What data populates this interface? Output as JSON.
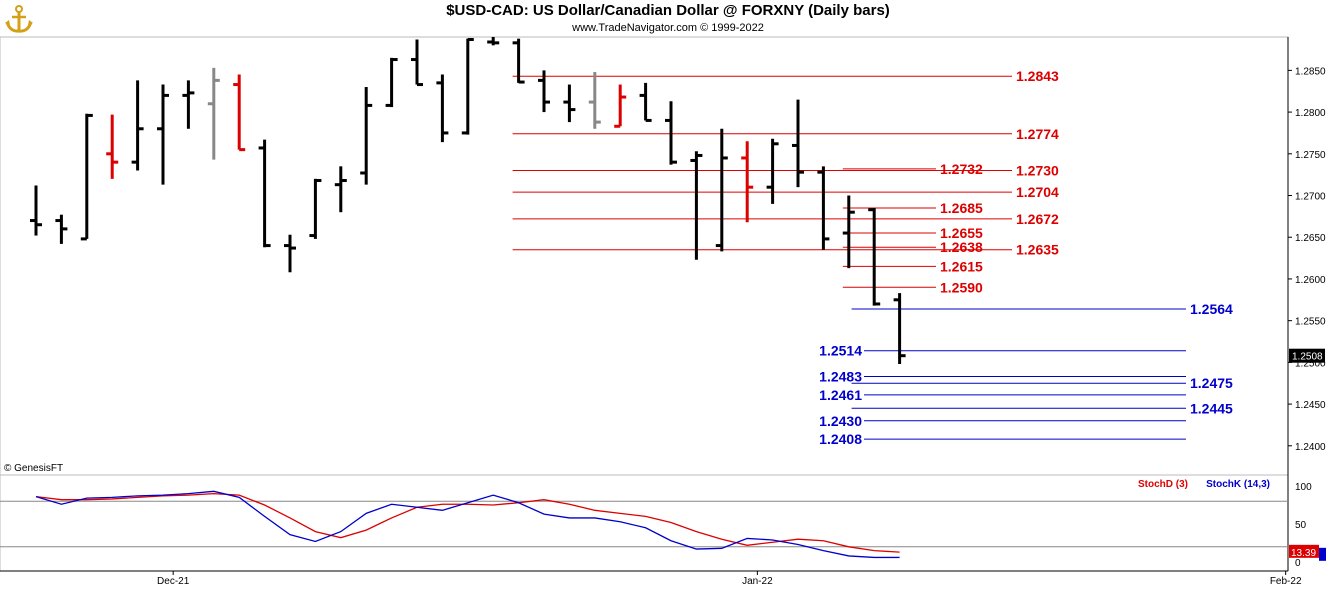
{
  "header": {
    "title": "$USD-CAD:  US Dollar/Canadian Dollar @ FORXNY  (Daily bars)",
    "subtitle": "www.TradeNavigator.com © 1999-2022",
    "credit": "© GenesisFT"
  },
  "colors": {
    "resistance": "#dd0000",
    "support": "#0000cc",
    "bar_default": "#000000",
    "bar_red": "#dd0000",
    "bar_gray": "#888888",
    "stoch_d": "#dd0000",
    "stoch_k": "#0000cc"
  },
  "chart_data": [
    {
      "type": "ohlc",
      "price_axis": {
        "ylim": [
          1.2365,
          1.289
        ],
        "ticks": [
          "1.2850",
          "1.2800",
          "1.2750",
          "1.2700",
          "1.2650",
          "1.2600",
          "1.2550",
          "1.2500",
          "1.2450",
          "1.2400"
        ],
        "last_price": "1.2508"
      },
      "x_labels": [
        {
          "label": "Dec-21",
          "bar_index": 5.4
        },
        {
          "label": "Jan-22",
          "bar_index": 28.4
        },
        {
          "label": "Feb-22",
          "bar_index": 49.2
        }
      ],
      "bars": [
        {
          "o": 1.267,
          "h": 1.2712,
          "l": 1.2652,
          "c": 1.2665,
          "color": "black"
        },
        {
          "o": 1.267,
          "h": 1.2677,
          "l": 1.2642,
          "c": 1.266,
          "color": "black"
        },
        {
          "o": 1.2648,
          "h": 1.2798,
          "l": 1.2648,
          "c": 1.2796,
          "color": "black"
        },
        {
          "o": 1.275,
          "h": 1.2797,
          "l": 1.272,
          "c": 1.274,
          "color": "red"
        },
        {
          "o": 1.274,
          "h": 1.2838,
          "l": 1.273,
          "c": 1.278,
          "color": "black"
        },
        {
          "o": 1.278,
          "h": 1.2833,
          "l": 1.2713,
          "c": 1.282,
          "color": "black"
        },
        {
          "o": 1.282,
          "h": 1.2838,
          "l": 1.278,
          "c": 1.2823,
          "color": "black"
        },
        {
          "o": 1.281,
          "h": 1.2853,
          "l": 1.2743,
          "c": 1.2838,
          "color": "gray"
        },
        {
          "o": 1.2833,
          "h": 1.2845,
          "l": 1.2755,
          "c": 1.2755,
          "color": "red"
        },
        {
          "o": 1.2757,
          "h": 1.2767,
          "l": 1.2638,
          "c": 1.264,
          "color": "black"
        },
        {
          "o": 1.264,
          "h": 1.2653,
          "l": 1.2608,
          "c": 1.2637,
          "color": "black"
        },
        {
          "o": 1.2652,
          "h": 1.272,
          "l": 1.2648,
          "c": 1.2718,
          "color": "black"
        },
        {
          "o": 1.2713,
          "h": 1.2735,
          "l": 1.268,
          "c": 1.2718,
          "color": "black"
        },
        {
          "o": 1.2727,
          "h": 1.283,
          "l": 1.2713,
          "c": 1.2808,
          "color": "black"
        },
        {
          "o": 1.2808,
          "h": 1.2865,
          "l": 1.2806,
          "c": 1.2863,
          "color": "black"
        },
        {
          "o": 1.2863,
          "h": 1.2887,
          "l": 1.2833,
          "c": 1.2833,
          "color": "black"
        },
        {
          "o": 1.2835,
          "h": 1.2845,
          "l": 1.2764,
          "c": 1.2775,
          "color": "black"
        },
        {
          "o": 1.2775,
          "h": 1.2888,
          "l": 1.2773,
          "c": 1.2887,
          "color": "black"
        },
        {
          "o": 1.2884,
          "h": 1.289,
          "l": 1.288,
          "c": 1.2883,
          "color": "black"
        },
        {
          "o": 1.2883,
          "h": 1.2888,
          "l": 1.2835,
          "c": 1.2836,
          "color": "black"
        },
        {
          "o": 1.2838,
          "h": 1.285,
          "l": 1.28,
          "c": 1.2812,
          "color": "black"
        },
        {
          "o": 1.2812,
          "h": 1.2833,
          "l": 1.2788,
          "c": 1.2803,
          "color": "black"
        },
        {
          "o": 1.2812,
          "h": 1.2848,
          "l": 1.278,
          "c": 1.2788,
          "color": "gray"
        },
        {
          "o": 1.2783,
          "h": 1.2833,
          "l": 1.2783,
          "c": 1.2818,
          "color": "red"
        },
        {
          "o": 1.282,
          "h": 1.2835,
          "l": 1.279,
          "c": 1.279,
          "color": "black"
        },
        {
          "o": 1.279,
          "h": 1.2813,
          "l": 1.2737,
          "c": 1.274,
          "color": "black"
        },
        {
          "o": 1.2742,
          "h": 1.2753,
          "l": 1.2623,
          "c": 1.2748,
          "color": "black"
        },
        {
          "o": 1.264,
          "h": 1.278,
          "l": 1.2633,
          "c": 1.2745,
          "color": "black"
        },
        {
          "o": 1.2745,
          "h": 1.2765,
          "l": 1.2668,
          "c": 1.271,
          "color": "red"
        },
        {
          "o": 1.271,
          "h": 1.2768,
          "l": 1.269,
          "c": 1.2762,
          "color": "black"
        },
        {
          "o": 1.276,
          "h": 1.2815,
          "l": 1.271,
          "c": 1.2728,
          "color": "black"
        },
        {
          "o": 1.2728,
          "h": 1.2735,
          "l": 1.2635,
          "c": 1.2648,
          "color": "black"
        },
        {
          "o": 1.2655,
          "h": 1.27,
          "l": 1.2613,
          "c": 1.268,
          "color": "black"
        },
        {
          "o": 1.2683,
          "h": 1.2685,
          "l": 1.2568,
          "c": 1.257,
          "color": "black"
        },
        {
          "o": 1.2575,
          "h": 1.2583,
          "l": 1.2498,
          "c": 1.2508,
          "color": "black"
        }
      ],
      "resistance_levels": [
        {
          "value": "1.2843",
          "start_bar": 19,
          "label_side": "right"
        },
        {
          "value": "1.2774",
          "start_bar": 19,
          "label_side": "right"
        },
        {
          "value": "1.2730",
          "start_bar": 19,
          "label_side": "right"
        },
        {
          "value": "1.2704",
          "start_bar": 19,
          "label_side": "right"
        },
        {
          "value": "1.2672",
          "start_bar": 19,
          "label_side": "right"
        },
        {
          "value": "1.2635",
          "start_bar": 19,
          "label_side": "right"
        },
        {
          "value": "1.2732",
          "start_bar": 32,
          "label_side": "mid"
        },
        {
          "value": "1.2685",
          "start_bar": 32,
          "label_side": "mid"
        },
        {
          "value": "1.2655",
          "start_bar": 32,
          "label_side": "mid"
        },
        {
          "value": "1.2638",
          "start_bar": 32,
          "label_side": "mid"
        },
        {
          "value": "1.2615",
          "start_bar": 32,
          "label_side": "mid"
        },
        {
          "value": "1.2590",
          "start_bar": 32,
          "label_side": "mid"
        }
      ],
      "support_levels": [
        {
          "value": "1.2564",
          "start_bar": 34,
          "label_side": "right"
        },
        {
          "value": "1.2475",
          "start_bar": 34,
          "label_side": "right"
        },
        {
          "value": "1.2445",
          "start_bar": 34,
          "label_side": "right"
        },
        {
          "value": "1.2514",
          "start_bar": 34,
          "label_side": "left"
        },
        {
          "value": "1.2483",
          "start_bar": 34,
          "label_side": "left"
        },
        {
          "value": "1.2461",
          "start_bar": 34,
          "label_side": "left"
        },
        {
          "value": "1.2430",
          "start_bar": 34,
          "label_side": "left"
        },
        {
          "value": "1.2408",
          "start_bar": 34,
          "label_side": "left"
        }
      ]
    },
    {
      "type": "line",
      "ylim": [
        0,
        100
      ],
      "ticks": [
        "100",
        "50",
        "0"
      ],
      "reference_lines": [
        80,
        20
      ],
      "last_value": "13.39",
      "series": [
        {
          "name": "StochD (3)",
          "color": "#dd0000",
          "values": [
            86,
            82,
            82,
            83,
            85,
            87,
            88,
            90,
            88,
            75,
            58,
            40,
            32,
            42,
            58,
            72,
            76,
            76,
            75,
            78,
            82,
            76,
            68,
            64,
            60,
            52,
            40,
            30,
            22,
            26,
            30,
            28,
            20,
            15,
            13
          ]
        },
        {
          "name": "StochK (14,3)",
          "color": "#0000cc",
          "values": [
            86,
            76,
            84,
            85,
            87,
            88,
            90,
            93,
            85,
            60,
            36,
            27,
            40,
            64,
            76,
            72,
            68,
            78,
            88,
            78,
            63,
            58,
            58,
            53,
            45,
            28,
            17,
            18,
            31,
            29,
            23,
            15,
            8,
            6,
            6
          ]
        }
      ]
    }
  ]
}
